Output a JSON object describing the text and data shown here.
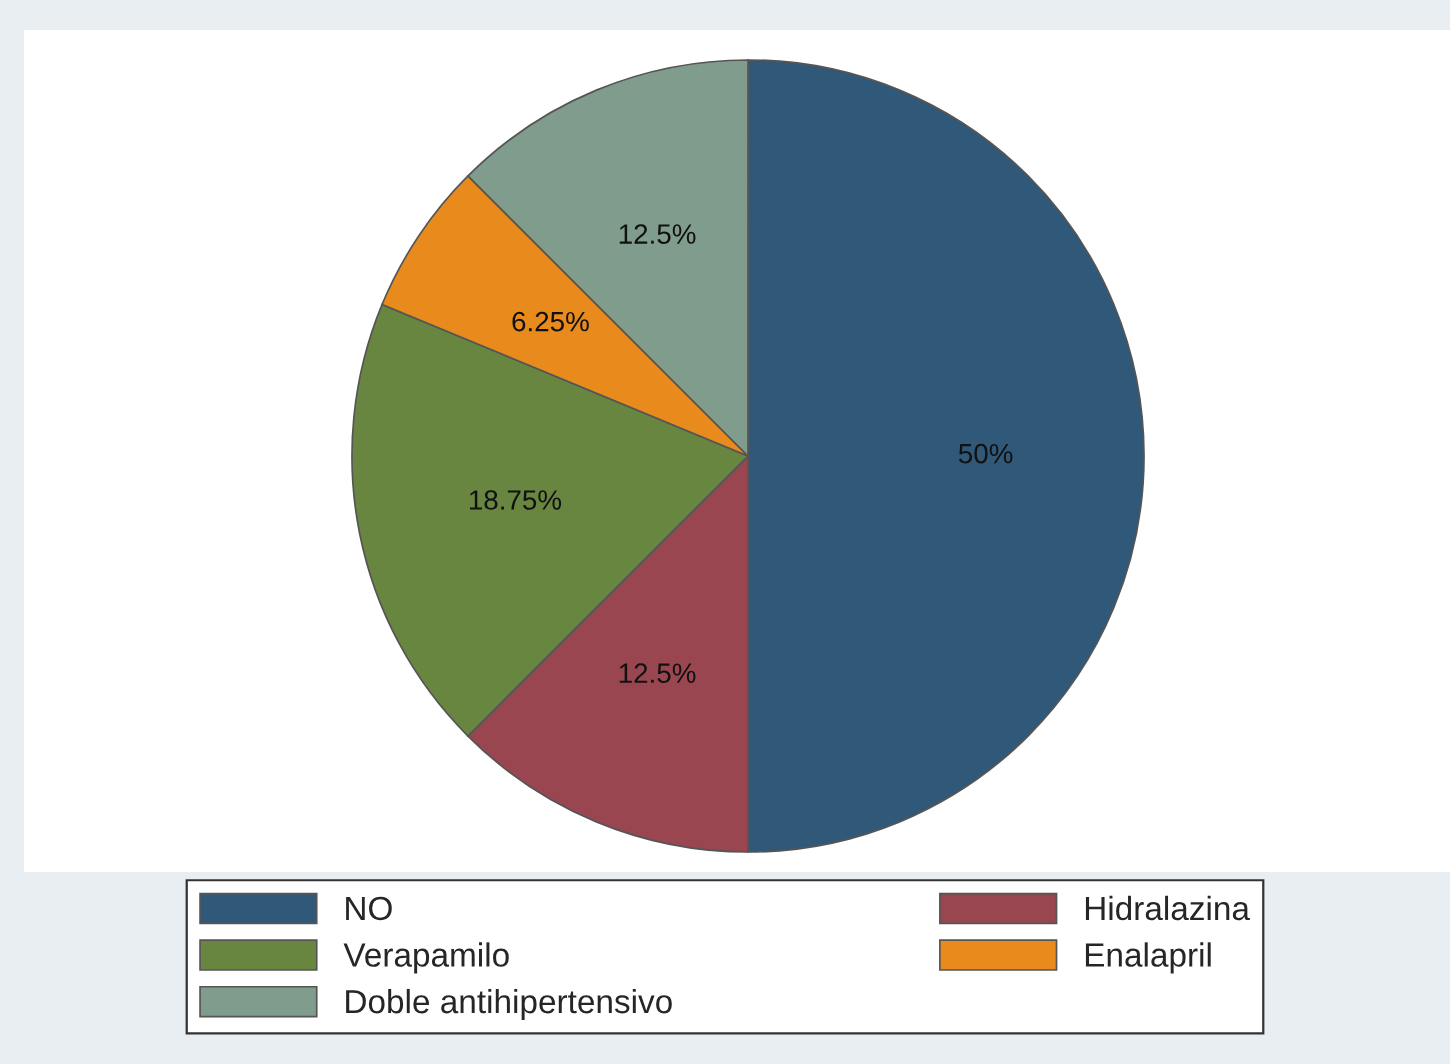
{
  "chart_data": {
    "type": "pie",
    "categories": [
      "NO",
      "Hidralazina",
      "Verapamilo",
      "Enalapril",
      "Doble antihipertensivo"
    ],
    "values": [
      50,
      12.5,
      18.75,
      6.25,
      12.5
    ],
    "value_labels": [
      "50%",
      "12.5%",
      "18.75%",
      "6.25%",
      "12.5%"
    ],
    "colors": [
      "#2f5879",
      "#9a4651",
      "#688640",
      "#e88b1c",
      "#7f9c8c"
    ],
    "legend": "bottom"
  }
}
